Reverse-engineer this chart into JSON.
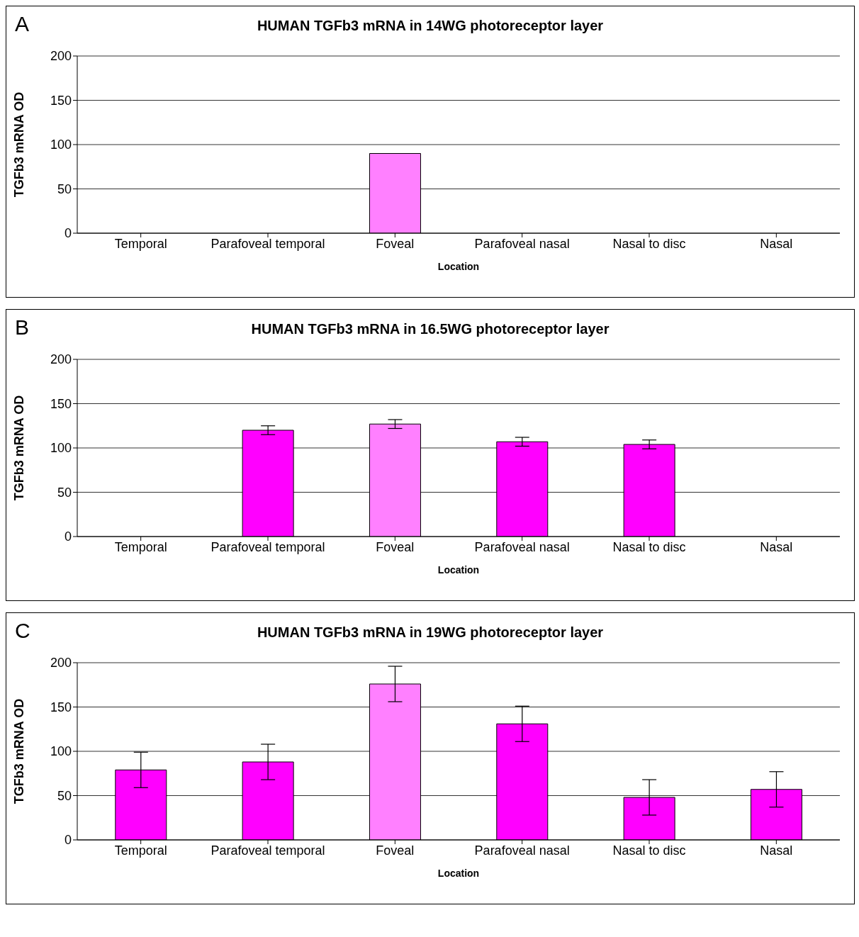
{
  "chart_data": [
    {
      "type": "bar",
      "title": "HUMAN TGFb3 mRNA in 14WG photoreceptor layer",
      "annotations": [
        "A"
      ],
      "xlabel": "Location",
      "ylabel": "TGFb3 mRNA OD",
      "categories": [
        "Temporal",
        "Parafoveal temporal",
        "Foveal",
        "Parafoveal nasal",
        "Nasal to disc",
        "Nasal"
      ],
      "values": [
        null,
        null,
        90,
        null,
        null,
        null
      ],
      "colors": [
        "#ff00ff",
        "#ff00ff",
        "#ff80ff",
        "#ff00ff",
        "#ff00ff",
        "#ff00ff"
      ],
      "ylim": [
        0,
        200
      ],
      "yticks": [
        0,
        50,
        100,
        150,
        200
      ],
      "grid": "y",
      "legend": false
    },
    {
      "type": "bar",
      "title": "HUMAN TGFb3 mRNA in 16.5WG photoreceptor layer",
      "annotations": [
        "B"
      ],
      "xlabel": "Location",
      "ylabel": "TGFb3 mRNA OD",
      "categories": [
        "Temporal",
        "Parafoveal temporal",
        "Foveal",
        "Parafoveal nasal",
        "Nasal to disc",
        "Nasal"
      ],
      "values": [
        null,
        120,
        127,
        107,
        104,
        null
      ],
      "errors": [
        null,
        5,
        5,
        5,
        5,
        null
      ],
      "colors": [
        "#ff00ff",
        "#ff00ff",
        "#ff80ff",
        "#ff00ff",
        "#ff00ff",
        "#ff00ff"
      ],
      "ylim": [
        0,
        200
      ],
      "yticks": [
        0,
        50,
        100,
        150,
        200
      ],
      "grid": "y",
      "legend": false
    },
    {
      "type": "bar",
      "title": "HUMAN TGFb3 mRNA in 19WG photoreceptor layer",
      "annotations": [
        "C"
      ],
      "xlabel": "Location",
      "ylabel": "TGFb3 mRNA OD",
      "categories": [
        "Temporal",
        "Parafoveal temporal",
        "Foveal",
        "Parafoveal nasal",
        "Nasal to disc",
        "Nasal"
      ],
      "values": [
        79,
        88,
        176,
        131,
        48,
        57
      ],
      "errors": [
        20,
        20,
        20,
        20,
        20,
        20
      ],
      "colors": [
        "#ff00ff",
        "#ff00ff",
        "#ff80ff",
        "#ff00ff",
        "#ff00ff",
        "#ff00ff"
      ],
      "ylim": [
        0,
        200
      ],
      "yticks": [
        0,
        50,
        100,
        150,
        200
      ],
      "grid": "y",
      "legend": false
    }
  ]
}
